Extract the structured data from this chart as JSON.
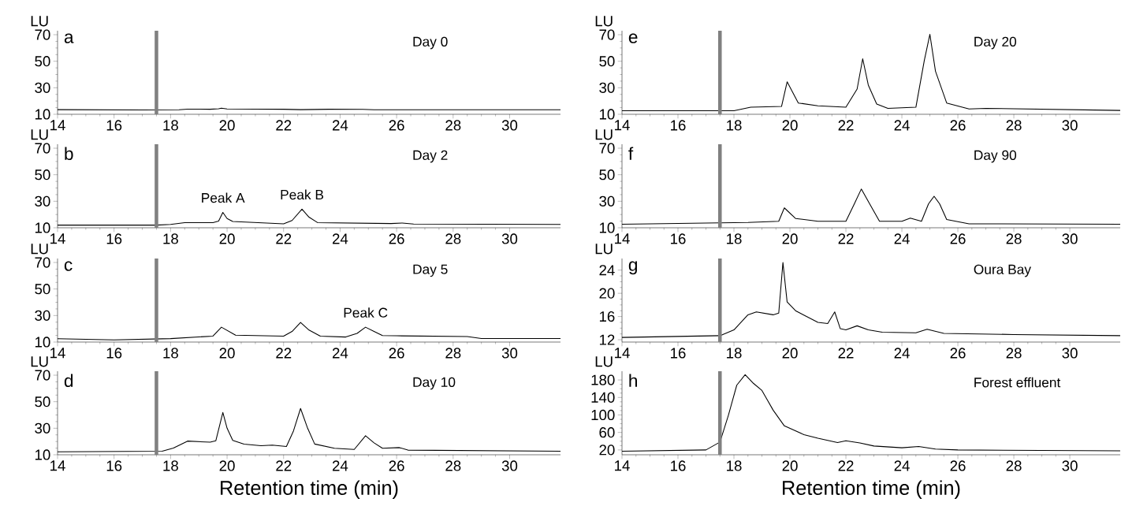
{
  "chart_data": [
    {
      "type": "line",
      "ylabel": "LU",
      "xlim": [
        14,
        31.8
      ],
      "ylim": [
        10,
        73
      ],
      "xticks": [
        14,
        16,
        18,
        20,
        22,
        24,
        26,
        28,
        30
      ],
      "yticks": [
        10,
        30,
        50,
        70
      ],
      "color": "#000000",
      "ref_lines": [
        {
          "axis": "x",
          "value": 17.5,
          "color": "#808080"
        }
      ],
      "annotations": [
        "a",
        "Day 0"
      ],
      "x": [
        14,
        17,
        18.3,
        18.6,
        19.4,
        19.7,
        19.8,
        20.0,
        22,
        22.6,
        23.6,
        24.8,
        25.2,
        31.8
      ],
      "values": [
        13.5,
        13.3,
        13.4,
        13.9,
        13.8,
        14.1,
        14.6,
        14.0,
        13.8,
        13.5,
        13.8,
        13.7,
        13.4,
        13.4
      ]
    },
    {
      "type": "line",
      "ylabel": "LU",
      "xlim": [
        14,
        31.8
      ],
      "ylim": [
        10,
        73
      ],
      "xticks": [
        14,
        16,
        18,
        20,
        22,
        24,
        26,
        28,
        30
      ],
      "yticks": [
        10,
        30,
        50,
        70
      ],
      "color": "#000000",
      "ref_lines": [
        {
          "axis": "x",
          "value": 17.5,
          "color": "#808080"
        }
      ],
      "annotations": [
        "b",
        "Day 2",
        {
          "text": "Peak A",
          "x": 19.85,
          "y": 21.6
        },
        {
          "text": "Peak B",
          "x": 22.65,
          "y": 24
        }
      ],
      "x": [
        14,
        17.5,
        18.0,
        18.5,
        19.5,
        19.7,
        19.85,
        20.0,
        20.2,
        22,
        22.3,
        22.65,
        22.9,
        23.2,
        25.8,
        26.2,
        26.6,
        31.8
      ],
      "values": [
        12,
        12,
        12.5,
        13.9,
        13.9,
        15,
        21.6,
        17,
        14.7,
        13,
        15.5,
        24,
        18,
        13.9,
        13.2,
        13.6,
        12.8,
        12.5
      ]
    },
    {
      "type": "line",
      "ylabel": "LU",
      "xlim": [
        14,
        31.8
      ],
      "ylim": [
        10,
        73
      ],
      "xticks": [
        14,
        16,
        18,
        20,
        22,
        24,
        26,
        28,
        30
      ],
      "yticks": [
        10,
        30,
        50,
        70
      ],
      "color": "#000000",
      "ref_lines": [
        {
          "axis": "x",
          "value": 17.5,
          "color": "#808080"
        }
      ],
      "annotations": [
        "c",
        "Day 5",
        {
          "text": "Peak C",
          "x": 24.9,
          "y": 21.2
        }
      ],
      "x": [
        14,
        16,
        18,
        19.5,
        19.8,
        20.3,
        22,
        22.3,
        22.6,
        22.9,
        23.3,
        24.2,
        24.6,
        24.9,
        25.2,
        25.5,
        26,
        28.5,
        29,
        31.8
      ],
      "values": [
        12.5,
        11.6,
        12.6,
        14.5,
        21.2,
        15.2,
        14.4,
        18,
        24.8,
        19,
        14.4,
        13.8,
        16.5,
        21.2,
        18,
        14.9,
        14.7,
        14.1,
        12.7,
        12.7
      ]
    },
    {
      "type": "line",
      "ylabel": "LU",
      "xlabel": "Retention time (min)",
      "xlim": [
        14,
        31.8
      ],
      "ylim": [
        10,
        73
      ],
      "xticks": [
        14,
        16,
        18,
        20,
        22,
        24,
        26,
        28,
        30
      ],
      "yticks": [
        10,
        30,
        50,
        70
      ],
      "color": "#000000",
      "ref_lines": [
        {
          "axis": "x",
          "value": 17.5,
          "color": "#808080"
        }
      ],
      "annotations": [
        "d",
        "Day 10"
      ],
      "x": [
        14,
        17.7,
        18.1,
        18.6,
        19.4,
        19.6,
        19.85,
        20.0,
        20.2,
        20.6,
        21.2,
        21.6,
        22.1,
        22.35,
        22.6,
        22.85,
        23.1,
        23.8,
        24.5,
        24.9,
        25.2,
        25.5,
        26.1,
        26.4,
        31.8
      ],
      "values": [
        12.2,
        12.7,
        15,
        20.3,
        19.5,
        20.5,
        41.9,
        30,
        20.8,
        18,
        16.8,
        17.3,
        16.2,
        28,
        44.9,
        30,
        18.1,
        14.9,
        14,
        24.3,
        19,
        14.9,
        15.4,
        13.5,
        12.7
      ]
    },
    {
      "type": "line",
      "ylabel": "LU",
      "xlim": [
        14,
        31.8
      ],
      "ylim": [
        10,
        73
      ],
      "xticks": [
        14,
        16,
        18,
        20,
        22,
        24,
        26,
        28,
        30
      ],
      "yticks": [
        10,
        30,
        50,
        70
      ],
      "color": "#000000",
      "ref_lines": [
        {
          "axis": "x",
          "value": 17.5,
          "color": "#808080"
        }
      ],
      "annotations": [
        "e",
        "Day 20"
      ],
      "x": [
        14,
        18,
        18.6,
        19.7,
        19.9,
        20.3,
        21,
        22,
        22.4,
        22.6,
        22.8,
        23.1,
        23.5,
        24.5,
        24.8,
        25.0,
        25.2,
        25.6,
        26.4,
        27,
        31.8
      ],
      "values": [
        12.7,
        12.7,
        15.3,
        15.9,
        34.5,
        18.5,
        16.4,
        15.3,
        29,
        51.9,
        32,
        17.7,
        14.5,
        15.3,
        50.5,
        70.3,
        42.5,
        18.5,
        14,
        14.5,
        12.9
      ]
    },
    {
      "type": "line",
      "ylabel": "LU",
      "xlim": [
        14,
        31.8
      ],
      "ylim": [
        10,
        73
      ],
      "xticks": [
        14,
        16,
        18,
        20,
        22,
        24,
        26,
        28,
        30
      ],
      "yticks": [
        10,
        30,
        50,
        70
      ],
      "color": "#000000",
      "ref_lines": [
        {
          "axis": "x",
          "value": 17.5,
          "color": "#808080"
        }
      ],
      "annotations": [
        "f",
        "Day 90"
      ],
      "x": [
        14,
        18.5,
        19.6,
        19.8,
        20.2,
        21,
        22,
        22.3,
        22.55,
        22.85,
        23.2,
        24.0,
        24.3,
        24.7,
        24.95,
        25.15,
        25.35,
        25.6,
        26.4,
        31.8
      ],
      "values": [
        12.7,
        14,
        14.9,
        25,
        17,
        14.9,
        14.9,
        28,
        39.2,
        28,
        14.9,
        14.9,
        17.3,
        14.9,
        28,
        33.8,
        28,
        16.2,
        13,
        12.7
      ]
    },
    {
      "type": "line",
      "ylabel": "LU",
      "xlim": [
        14,
        31.8
      ],
      "ylim": [
        11.6,
        26
      ],
      "xticks": [
        14,
        16,
        18,
        20,
        22,
        24,
        26,
        28,
        30
      ],
      "yticks": [
        12,
        16,
        20,
        24
      ],
      "color": "#000000",
      "ref_lines": [
        {
          "axis": "x",
          "value": 17.5,
          "color": "#808080"
        }
      ],
      "annotations": [
        "g",
        "Oura Bay"
      ],
      "x": [
        14,
        17.5,
        18,
        18.5,
        18.8,
        19.4,
        19.6,
        19.75,
        19.9,
        20.2,
        21,
        21.35,
        21.6,
        21.8,
        22,
        22.4,
        22.8,
        23.3,
        24.5,
        24.9,
        25.5,
        28,
        31.8
      ],
      "values": [
        12.4,
        12.7,
        13.7,
        16.3,
        16.8,
        16.3,
        16.6,
        25.3,
        18.5,
        17,
        15,
        14.8,
        16.8,
        13.9,
        13.7,
        14.4,
        13.7,
        13.3,
        13.2,
        13.8,
        13.1,
        12.9,
        12.7
      ]
    },
    {
      "type": "line",
      "ylabel": "LU",
      "xlabel": "Retention time (min)",
      "xlim": [
        14,
        31.8
      ],
      "ylim": [
        9,
        200
      ],
      "xticks": [
        14,
        16,
        18,
        20,
        22,
        24,
        26,
        28,
        30
      ],
      "yticks": [
        20,
        60,
        100,
        140,
        180
      ],
      "color": "#000000",
      "ref_lines": [
        {
          "axis": "x",
          "value": 17.5,
          "color": "#808080"
        }
      ],
      "annotations": [
        "h",
        "Forest effluent"
      ],
      "x": [
        14,
        17,
        17.5,
        17.8,
        18.1,
        18.4,
        18.7,
        19.0,
        19.4,
        19.8,
        20.5,
        21,
        21.7,
        22,
        22.5,
        23.0,
        24,
        24.6,
        25.2,
        26,
        31.8
      ],
      "values": [
        17,
        20,
        38,
        99,
        168,
        192,
        172,
        156,
        111,
        75,
        55,
        47,
        37,
        41,
        36,
        29,
        25,
        28,
        22,
        20,
        18
      ]
    }
  ]
}
